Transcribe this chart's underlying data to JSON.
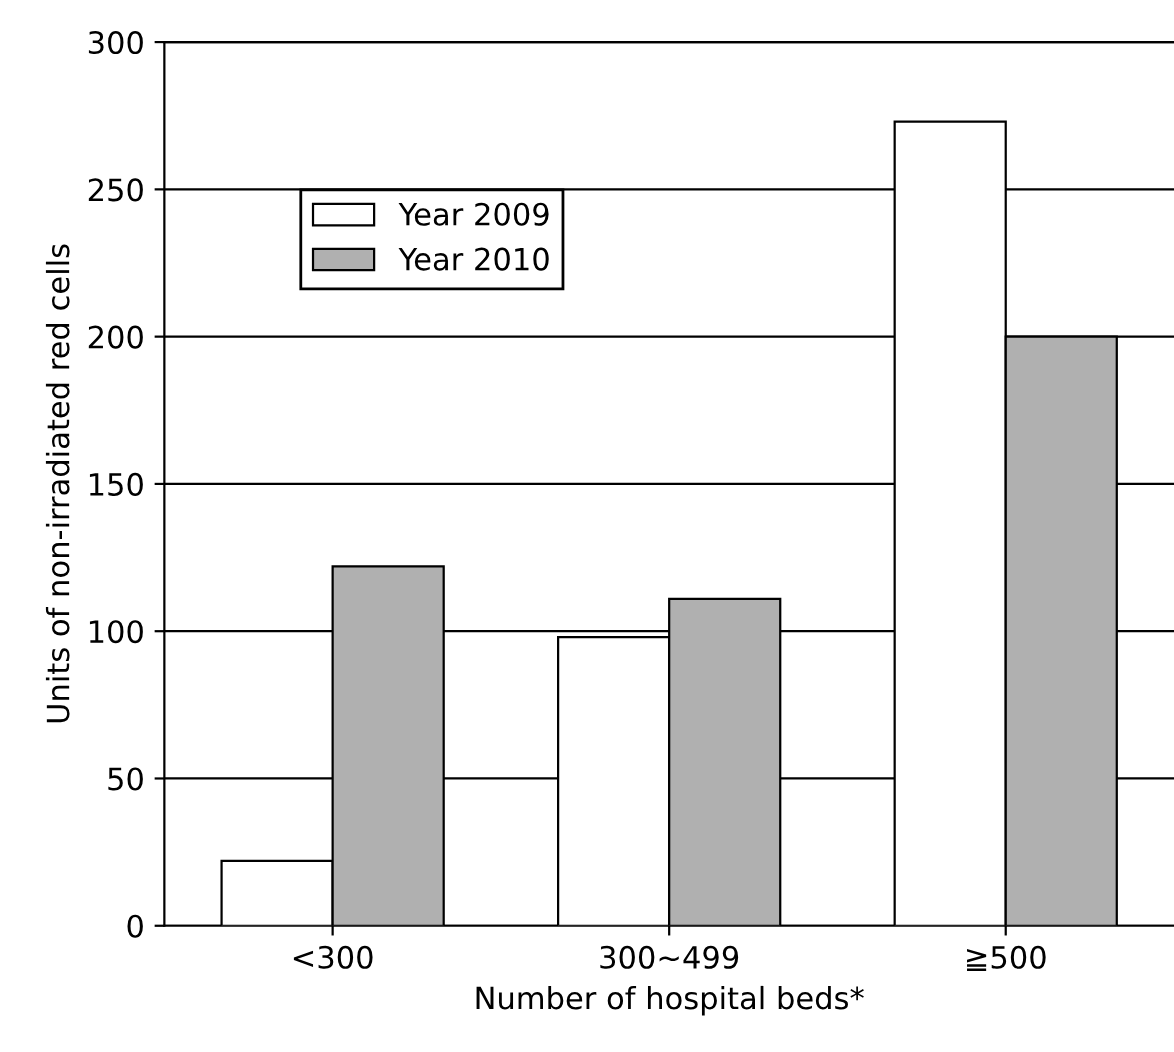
{
  "chart_data": {
    "type": "bar",
    "xlabel": "Number of hospital beds*",
    "ylabel": "Units of non-irradiated red cells",
    "categories": [
      "<300",
      "300~499",
      "≧500"
    ],
    "series": [
      {
        "name": "Year 2009",
        "color": "#ffffff",
        "values": [
          22,
          98,
          273
        ]
      },
      {
        "name": "Year 2010",
        "color": "#b0b0b0",
        "values": [
          122,
          111,
          200
        ]
      }
    ],
    "ylim": [
      0,
      300
    ],
    "yticks": [
      0,
      50,
      100,
      150,
      200,
      250,
      300
    ],
    "grid": "y",
    "legend": "top left"
  }
}
